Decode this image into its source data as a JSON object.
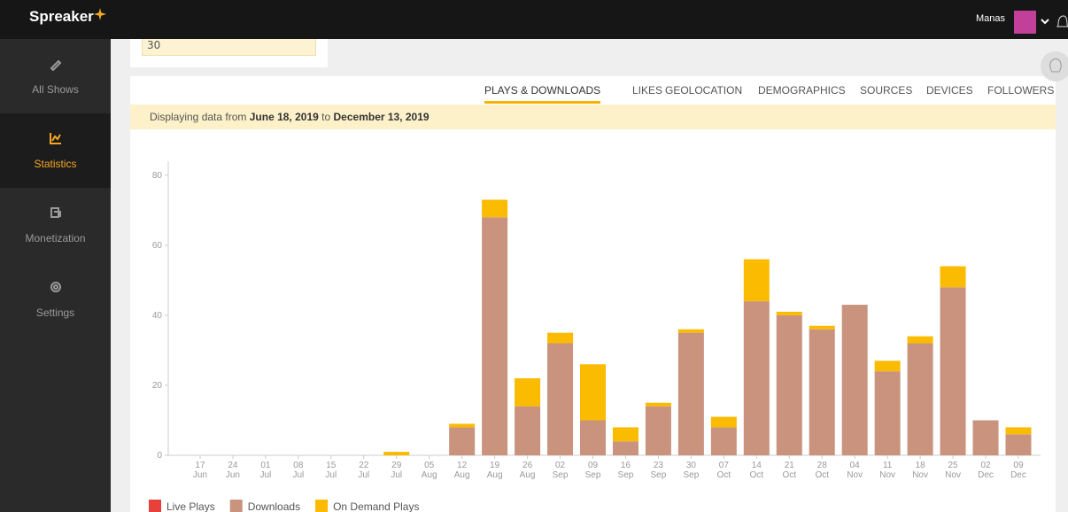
{
  "header": {
    "logo": "Spreaker",
    "user": "Manas"
  },
  "sidebar": {
    "items": [
      "All Shows",
      "Statistics",
      "Monetization",
      "Settings"
    ],
    "active": 1
  },
  "summary_card": {
    "value": 30
  },
  "tabs": {
    "items": [
      "PLAYS & DOWNLOADS",
      "LIKES",
      "GEOLOCATION",
      "DEMOGRAPHICS",
      "SOURCES",
      "DEVICES",
      "FOLLOWERS"
    ],
    "active": 0
  },
  "banner": {
    "prefix": "Displaying data from",
    "start": "June 18, 2019",
    "middle": "to",
    "end": "December 13, 2019"
  },
  "chart_data": {
    "type": "bar",
    "stacked": true,
    "categories": [
      [
        "17",
        "Jun"
      ],
      [
        "24",
        "Jun"
      ],
      [
        "01",
        "Jul"
      ],
      [
        "08",
        "Jul"
      ],
      [
        "15",
        "Jul"
      ],
      [
        "22",
        "Jul"
      ],
      [
        "29",
        "Jul"
      ],
      [
        "05",
        "Aug"
      ],
      [
        "12",
        "Aug"
      ],
      [
        "19",
        "Aug"
      ],
      [
        "26",
        "Aug"
      ],
      [
        "02",
        "Sep"
      ],
      [
        "09",
        "Sep"
      ],
      [
        "16",
        "Sep"
      ],
      [
        "23",
        "Sep"
      ],
      [
        "30",
        "Sep"
      ],
      [
        "07",
        "Oct"
      ],
      [
        "14",
        "Oct"
      ],
      [
        "21",
        "Oct"
      ],
      [
        "28",
        "Oct"
      ],
      [
        "04",
        "Nov"
      ],
      [
        "11",
        "Nov"
      ],
      [
        "18",
        "Nov"
      ],
      [
        "25",
        "Nov"
      ],
      [
        "02",
        "Dec"
      ],
      [
        "09",
        "Dec"
      ]
    ],
    "series": [
      {
        "name": "Live Plays",
        "color": "#e8403a",
        "values": [
          0,
          0,
          0,
          0,
          0,
          0,
          0,
          0,
          0,
          0,
          0,
          0,
          0,
          0,
          0,
          0,
          0,
          0,
          0,
          0,
          0,
          0,
          0,
          0,
          0,
          0
        ]
      },
      {
        "name": "Downloads",
        "color": "#c9937e",
        "values": [
          0,
          0,
          0,
          0,
          0,
          0,
          0,
          0,
          8,
          68,
          14,
          32,
          10,
          4,
          14,
          35,
          8,
          44,
          40,
          36,
          43,
          24,
          32,
          48,
          10,
          6
        ]
      },
      {
        "name": "On Demand Plays",
        "color": "#fbbb00",
        "values": [
          0,
          0,
          0,
          0,
          0,
          0,
          1,
          0,
          1,
          5,
          8,
          3,
          16,
          4,
          1,
          1,
          3,
          12,
          1,
          1,
          0,
          3,
          2,
          6,
          0,
          2
        ]
      }
    ],
    "ylim": [
      0,
      84
    ],
    "yticks": [
      0,
      20,
      40,
      60,
      80
    ],
    "legend": "bottom-left"
  }
}
